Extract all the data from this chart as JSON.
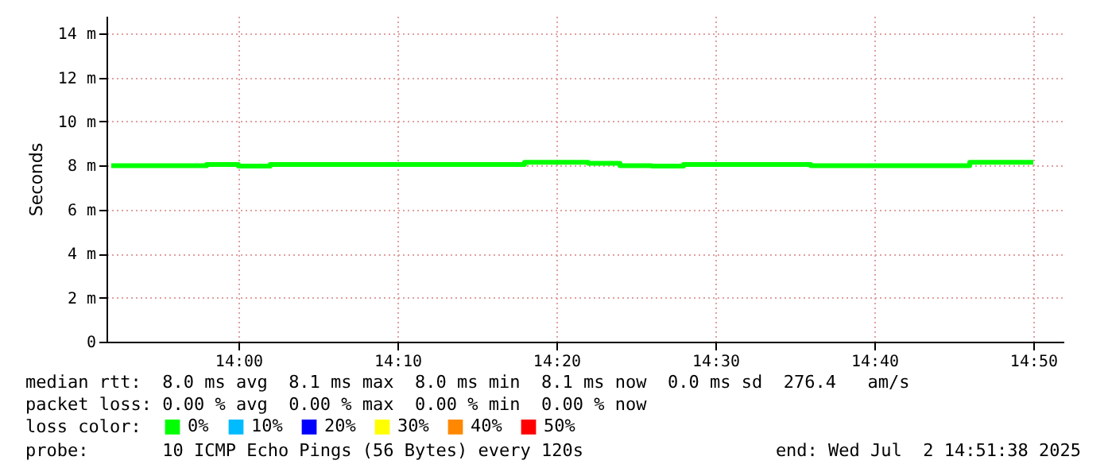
{
  "chart_data": {
    "type": "step",
    "ylabel": "Seconds",
    "legend_title": "loss color:",
    "legend": "bottom",
    "grid": true,
    "marker": "none",
    "line_style": "solid",
    "x": [
      13.8667,
      13.9,
      13.9333,
      13.9667,
      14.0,
      14.0333,
      14.0667,
      14.1,
      14.1333,
      14.1667,
      14.2,
      14.2333,
      14.2667,
      14.3,
      14.3333,
      14.3667,
      14.4,
      14.4333,
      14.4667,
      14.5,
      14.5333,
      14.5667,
      14.6,
      14.6333,
      14.6667,
      14.7,
      14.7333,
      14.7667,
      14.8,
      14.8333
    ],
    "series": [
      {
        "name": "0%",
        "color": "#00ff00",
        "values": [
          8.0,
          8.0,
          8.0,
          8.05,
          7.98,
          8.05,
          8.05,
          8.05,
          8.05,
          8.05,
          8.05,
          8.05,
          8.05,
          8.15,
          8.15,
          8.1,
          8.0,
          7.98,
          8.05,
          8.05,
          8.05,
          8.05,
          8.0,
          8.0,
          8.0,
          8.0,
          8.0,
          8.15,
          8.15,
          8.15
        ]
      },
      {
        "name": "10%",
        "color": "#00bbff",
        "values": [
          null,
          null,
          null,
          null,
          null,
          null,
          null,
          null,
          null,
          null,
          null,
          null,
          null,
          null,
          null,
          null,
          null,
          null,
          null,
          null,
          null,
          null,
          null,
          null,
          null,
          null,
          null,
          null,
          null,
          null
        ]
      },
      {
        "name": "20%",
        "color": "#0000ff",
        "values": [
          null,
          null,
          null,
          null,
          null,
          null,
          null,
          null,
          null,
          null,
          null,
          null,
          null,
          null,
          null,
          null,
          null,
          null,
          null,
          null,
          null,
          null,
          null,
          null,
          null,
          null,
          null,
          null,
          null,
          null
        ]
      },
      {
        "name": "30%",
        "color": "#ffff00",
        "values": [
          null,
          null,
          null,
          null,
          null,
          null,
          null,
          null,
          null,
          null,
          null,
          null,
          null,
          null,
          null,
          null,
          null,
          null,
          null,
          null,
          null,
          null,
          null,
          null,
          null,
          null,
          null,
          null,
          null,
          null
        ]
      },
      {
        "name": "40%",
        "color": "#ff8800",
        "values": [
          null,
          null,
          null,
          null,
          null,
          null,
          null,
          null,
          null,
          null,
          null,
          null,
          null,
          null,
          null,
          null,
          null,
          null,
          null,
          null,
          null,
          null,
          null,
          null,
          null,
          null,
          null,
          null,
          null,
          null
        ]
      },
      {
        "name": "50%",
        "color": "#ff0000",
        "values": [
          null,
          null,
          null,
          null,
          null,
          null,
          null,
          null,
          null,
          null,
          null,
          null,
          null,
          null,
          null,
          null,
          null,
          null,
          null,
          null,
          null,
          null,
          null,
          null,
          null,
          null,
          null,
          null,
          null,
          null
        ]
      }
    ],
    "xlim": [
      13.8617,
      14.865
    ],
    "xticks": [
      {
        "value": 14.0,
        "label": "14:00"
      },
      {
        "value": 14.1667,
        "label": "14:10"
      },
      {
        "value": 14.3333,
        "label": "14:20"
      },
      {
        "value": 14.5,
        "label": "14:30"
      },
      {
        "value": 14.6667,
        "label": "14:40"
      },
      {
        "value": 14.8333,
        "label": "14:50"
      }
    ],
    "ylim": [
      0,
      14.8
    ],
    "yticks": [
      0,
      {
        "value": 2,
        "label": "2 m"
      },
      {
        "value": 4,
        "label": "4 m"
      },
      {
        "value": 6,
        "label": "6 m"
      },
      {
        "value": 8,
        "label": "8 m"
      },
      {
        "value": 10,
        "label": "10 m"
      },
      {
        "value": 12,
        "label": "12 m"
      },
      {
        "value": 14,
        "label": "14 m"
      }
    ],
    "annotations": [
      "median rtt:  8.0 ms avg  8.1 ms max  8.0 ms min  8.1 ms now  0.0 ms sd  276.4   am/s",
      "packet loss: 0.00 % avg  0.00 % max  0.00 % min  0.00 % now",
      "probe:       10 ICMP Echo Pings (56 Bytes) every 120s",
      "end: Wed Jul  2 14:51:38 2025"
    ]
  }
}
